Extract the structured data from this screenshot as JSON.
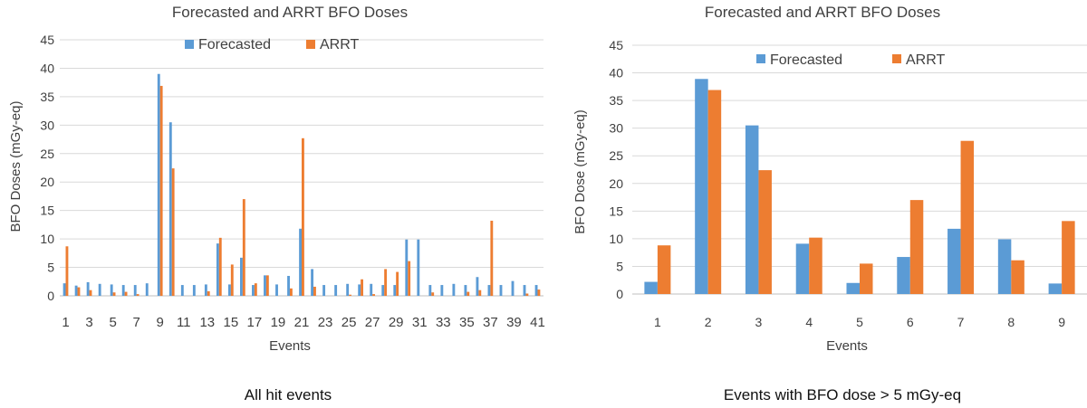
{
  "colors": {
    "forecasted": "#5b9bd5",
    "arrt": "#ed7d31"
  },
  "chart_data": [
    {
      "type": "bar",
      "title": "Forecasted and ARRT BFO Doses",
      "xlabel": "Events",
      "ylabel": "BFO Doses (mGy-eq)",
      "ylim": [
        0,
        45
      ],
      "yticks": [
        "0",
        "5",
        "10",
        "15",
        "20",
        "25",
        "30",
        "35",
        "40",
        "45"
      ],
      "legend": "top-center",
      "grid": true,
      "categories": [
        "1",
        "2",
        "3",
        "4",
        "5",
        "6",
        "7",
        "8",
        "9",
        "10",
        "11",
        "12",
        "13",
        "14",
        "15",
        "16",
        "17",
        "18",
        "19",
        "20",
        "21",
        "22",
        "23",
        "24",
        "25",
        "26",
        "27",
        "28",
        "29",
        "30",
        "31",
        "32",
        "33",
        "34",
        "35",
        "36",
        "37",
        "38",
        "39",
        "40",
        "41"
      ],
      "xtick_labels": [
        "1",
        "3",
        "5",
        "7",
        "9",
        "11",
        "13",
        "15",
        "17",
        "19",
        "21",
        "23",
        "25",
        "27",
        "29",
        "31",
        "33",
        "35",
        "37",
        "39",
        "41"
      ],
      "series": [
        {
          "name": "Forecasted",
          "values": [
            2.2,
            1.8,
            2.4,
            2.1,
            2.0,
            1.9,
            1.9,
            2.2,
            39.0,
            30.5,
            1.9,
            1.9,
            2.0,
            9.2,
            2.0,
            6.7,
            1.9,
            3.6,
            2.0,
            3.5,
            11.8,
            4.7,
            1.9,
            1.9,
            2.1,
            2.0,
            2.1,
            1.9,
            1.9,
            9.9,
            9.9,
            1.9,
            1.9,
            2.1,
            1.9,
            3.3,
            1.9,
            1.9,
            2.6,
            1.9,
            1.9
          ]
        },
        {
          "name": "ARRT",
          "values": [
            8.7,
            1.5,
            1.0,
            0.0,
            0.6,
            0.7,
            0.3,
            0.0,
            36.9,
            22.4,
            0.0,
            0.0,
            0.8,
            10.2,
            5.5,
            17.0,
            2.2,
            3.6,
            0.0,
            1.3,
            27.7,
            1.6,
            0.0,
            0.0,
            0.2,
            2.9,
            0.3,
            4.7,
            4.2,
            6.1,
            0.0,
            0.6,
            0.0,
            0.0,
            0.7,
            1.0,
            13.2,
            0.0,
            0.0,
            0.4,
            1.1
          ]
        }
      ],
      "caption": "All hit events"
    },
    {
      "type": "bar",
      "title": "Forecasted and ARRT BFO Doses",
      "xlabel": "Events",
      "ylabel": "BFO Dose (mGy-eq)",
      "ylim": [
        0,
        45
      ],
      "yticks": [
        "0",
        "5",
        "10",
        "15",
        "20",
        "25",
        "30",
        "35",
        "40",
        "45"
      ],
      "legend": "top-center",
      "grid": true,
      "categories": [
        "1",
        "2",
        "3",
        "4",
        "5",
        "6",
        "7",
        "8",
        "9"
      ],
      "xtick_labels": [
        "1",
        "2",
        "3",
        "4",
        "5",
        "6",
        "7",
        "8",
        "9"
      ],
      "series": [
        {
          "name": "Forecasted",
          "values": [
            2.2,
            38.9,
            30.5,
            9.1,
            2.0,
            6.7,
            11.8,
            9.9,
            1.9
          ]
        },
        {
          "name": "ARRT",
          "values": [
            8.8,
            36.9,
            22.4,
            10.2,
            5.5,
            17.0,
            27.7,
            6.1,
            13.2
          ]
        }
      ],
      "caption": "Events with BFO dose > 5 mGy-eq"
    }
  ]
}
